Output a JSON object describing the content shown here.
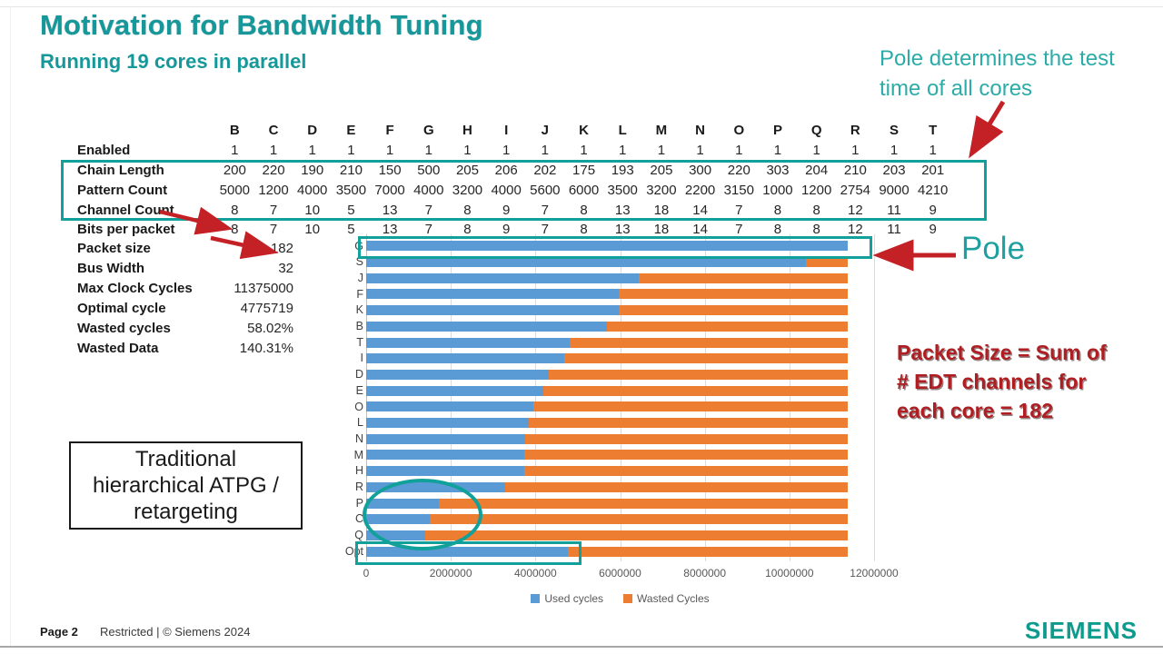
{
  "header": {
    "title": "Motivation for Bandwidth Tuning",
    "subtitle": "Running 19 cores in parallel"
  },
  "annotations": {
    "pole_note_lines": [
      "Pole determines the test",
      "time of all cores"
    ],
    "pole_label": "Pole",
    "packet_note_lines": [
      "Packet Size = Sum of",
      "# EDT channels for",
      "each core = 182"
    ],
    "traditional_box_lines": [
      "Traditional",
      "hierarchical ATPG /",
      "retargeting"
    ]
  },
  "table": {
    "columns": [
      "B",
      "C",
      "D",
      "E",
      "F",
      "G",
      "H",
      "I",
      "J",
      "K",
      "L",
      "M",
      "N",
      "O",
      "P",
      "Q",
      "R",
      "S",
      "T"
    ],
    "rows": [
      {
        "label": "Enabled",
        "highlighted": false,
        "values": [
          1,
          1,
          1,
          1,
          1,
          1,
          1,
          1,
          1,
          1,
          1,
          1,
          1,
          1,
          1,
          1,
          1,
          1,
          1
        ]
      },
      {
        "label": "Chain Length",
        "highlighted": true,
        "values": [
          200,
          220,
          190,
          210,
          150,
          500,
          205,
          206,
          202,
          175,
          193,
          205,
          300,
          220,
          303,
          204,
          210,
          203,
          201
        ]
      },
      {
        "label": "Pattern Count",
        "highlighted": true,
        "values": [
          5000,
          1200,
          4000,
          3500,
          7000,
          4000,
          3200,
          4000,
          5600,
          6000,
          3500,
          3200,
          2200,
          3150,
          1000,
          1200,
          2754,
          9000,
          4210
        ]
      },
      {
        "label": "Channel Count",
        "highlighted": true,
        "values": [
          8,
          7,
          10,
          5,
          13,
          7,
          8,
          9,
          7,
          8,
          13,
          18,
          14,
          7,
          8,
          8,
          12,
          11,
          9
        ]
      },
      {
        "label": "Bits per packet",
        "highlighted": false,
        "values": [
          8,
          7,
          10,
          5,
          13,
          7,
          8,
          9,
          7,
          8,
          13,
          18,
          14,
          7,
          8,
          8,
          12,
          11,
          9
        ]
      }
    ]
  },
  "summary": {
    "rows": [
      {
        "label": "Packet size",
        "value": "182"
      },
      {
        "label": "Bus Width",
        "value": "32"
      },
      {
        "label": "Max Clock Cycles",
        "value": "11375000"
      },
      {
        "label": "Optimal cycle",
        "value": "4775719"
      },
      {
        "label": "Wasted cycles",
        "value": "58.02%"
      },
      {
        "label": "Wasted Data",
        "value": "140.31%"
      }
    ]
  },
  "chart_data": {
    "type": "bar",
    "orientation": "horizontal-stacked",
    "categories": [
      "G",
      "S",
      "J",
      "F",
      "K",
      "B",
      "T",
      "I",
      "D",
      "E",
      "O",
      "L",
      "N",
      "M",
      "H",
      "R",
      "P",
      "C",
      "Q",
      "Opt"
    ],
    "series": [
      {
        "name": "Used cycles",
        "color": "#5B9BD5",
        "values": [
          11375000,
          10391063,
          6433700,
          5971875,
          5971875,
          5687500,
          4812819,
          4686500,
          4322500,
          4180313,
          3941438,
          3841906,
          3753750,
          3731000,
          3731000,
          3289309,
          1723313,
          1501500,
          1392300,
          4775719
        ]
      },
      {
        "name": "Wasted Cycles",
        "color": "#ED7D31",
        "values": [
          0,
          983937,
          4941300,
          5403125,
          5403125,
          5687500,
          6562181,
          6688500,
          7052500,
          7194687,
          7433562,
          7533094,
          7621250,
          7644000,
          7644000,
          8085691,
          9651687,
          9873500,
          9982700,
          6599281
        ]
      }
    ],
    "bar_total": 11375000,
    "x_ticks": [
      0,
      2000000,
      4000000,
      6000000,
      8000000,
      10000000,
      12000000
    ],
    "xlim": [
      0,
      12000000
    ],
    "grid": true,
    "legend_position": "bottom",
    "title": "",
    "xlabel": "",
    "ylabel": ""
  },
  "footer": {
    "page": "Page 2",
    "restriction": "Restricted | © Siemens 2024",
    "logo": "SIEMENS"
  },
  "colors": {
    "teal": "#16989A",
    "teal_bright": "#2BACA8",
    "highlight_teal": "#12A09A",
    "arrow_red": "#C42127",
    "note_red": "#AF1E22",
    "used_blue": "#5B9BD5",
    "wasted_orange": "#ED7D31"
  }
}
